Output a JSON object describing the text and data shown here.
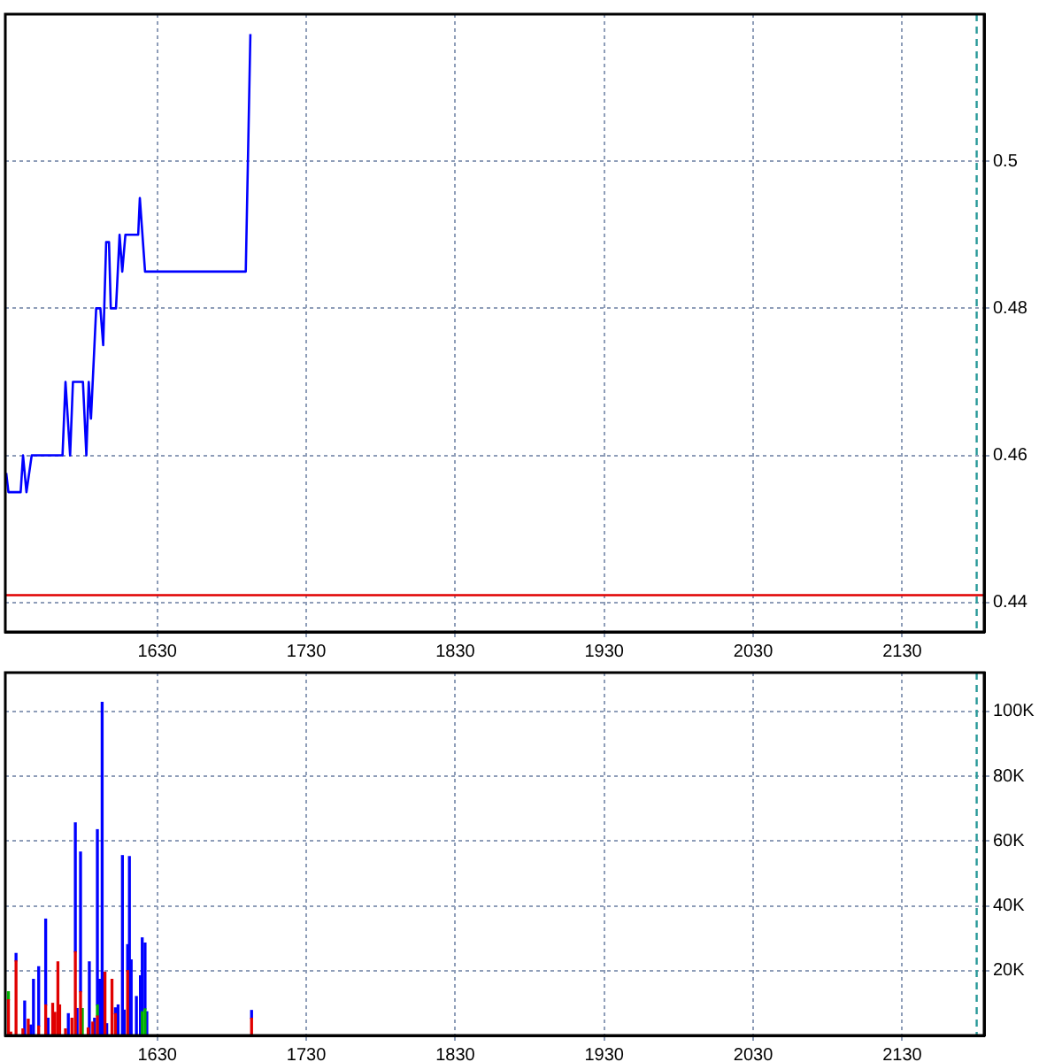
{
  "chart_data": [
    {
      "type": "line",
      "xlim": [
        1528,
        2185
      ],
      "xticks": [
        1630,
        1730,
        1830,
        1930,
        2030,
        2130
      ],
      "ylim": [
        0.436,
        0.52
      ],
      "yticks": [
        0.44,
        0.46,
        0.48,
        0.5
      ],
      "grid": true,
      "marker": "none",
      "line_style": "solid",
      "x": [
        1528.6,
        1530.1,
        1538.3,
        1539.9,
        1542.2,
        1545.7,
        1566.4,
        1568.4,
        1571.5,
        1573.4,
        1580.1,
        1582.4,
        1584,
        1585.5,
        1589,
        1591.8,
        1593.7,
        1595.7,
        1597.6,
        1598.8,
        1602.3,
        1604.7,
        1606.5,
        1608.6,
        1617.2,
        1618.3,
        1621.8,
        1689.4,
        1692.5
      ],
      "series": [
        {
          "color": "#0000ff",
          "values": [
            0.4576,
            0.455,
            0.455,
            0.46,
            0.455,
            0.46,
            0.46,
            0.47,
            0.46,
            0.47,
            0.47,
            0.46,
            0.47,
            0.465,
            0.48,
            0.48,
            0.475,
            0.489,
            0.489,
            0.48,
            0.48,
            0.49,
            0.485,
            0.49,
            0.49,
            0.495,
            0.485,
            0.485,
            0.5173
          ]
        }
      ],
      "ref_lines": [
        {
          "axis": "y",
          "value": 0.441,
          "color": "#e00000"
        },
        {
          "axis": "x",
          "value": 2180,
          "color": "#2a9a9a",
          "line_style": "dashed"
        }
      ]
    },
    {
      "type": "bar",
      "stacked": true,
      "xlim": [
        1528,
        2185
      ],
      "xticks": [
        1630,
        1730,
        1830,
        1930,
        2030,
        2130
      ],
      "ylim": [
        0,
        112000
      ],
      "yticks": [
        {
          "value": 20000,
          "label": "20K"
        },
        {
          "value": 40000,
          "label": "40K"
        },
        {
          "value": 60000,
          "label": "60K"
        },
        {
          "value": 80000,
          "label": "80K"
        },
        {
          "value": 100000,
          "label": "100K"
        }
      ],
      "grid": true,
      "x": [
        1530.1,
        1531.7,
        1535.2,
        1539.8,
        1541,
        1543.4,
        1545.1,
        1546.9,
        1550.4,
        1555.1,
        1556.7,
        1559.8,
        1561.3,
        1563.3,
        1564.5,
        1568.4,
        1570.3,
        1572.7,
        1575,
        1576.2,
        1578.5,
        1579.7,
        1583.6,
        1584.4,
        1586.7,
        1587.9,
        1589.8,
        1591.4,
        1593,
        1594.9,
        1596.1,
        1599.6,
        1601.9,
        1603.7,
        1606.6,
        1607.8,
        1610.1,
        1611.3,
        1612.5,
        1616,
        1618.7,
        1619.9,
        1621.8,
        1623,
        1693.3
      ],
      "series": [
        {
          "color": "#e00000",
          "values": [
            11000,
            1000,
            23000,
            2000,
            null,
            5000,
            null,
            null,
            2900,
            9400,
            null,
            9900,
            7100,
            22700,
            9400,
            2000,
            null,
            5300,
            25800,
            null,
            13500,
            null,
            2300,
            null,
            4100,
            null,
            6000,
            null,
            null,
            19500,
            null,
            17300,
            6700,
            null,
            null,
            null,
            20000,
            null,
            null,
            null,
            null,
            null,
            null,
            null,
            5300
          ]
        },
        {
          "color": "#00b000",
          "values": [
            2500,
            null,
            null,
            null,
            null,
            null,
            null,
            null,
            null,
            null,
            null,
            null,
            null,
            null,
            null,
            null,
            null,
            null,
            null,
            null,
            null,
            8300,
            null,
            null,
            null,
            null,
            3400,
            null,
            null,
            null,
            null,
            null,
            null,
            null,
            null,
            null,
            null,
            null,
            null,
            null,
            null,
            7300,
            8200,
            null,
            null
          ]
        },
        {
          "color": "#0000ff",
          "values": [
            null,
            null,
            2300,
            null,
            10600,
            null,
            3200,
            17300,
            18300,
            26500,
            5300,
            null,
            null,
            null,
            null,
            null,
            6700,
            null,
            39800,
            8300,
            43100,
            null,
            null,
            22700,
            null,
            5300,
            54100,
            17300,
            102800,
            null,
            3600,
            null,
            1800,
            9400,
            55500,
            7800,
            8000,
            55200,
            23300,
            12000,
            18400,
            22800,
            20300,
            7300,
            2400
          ]
        }
      ],
      "ref_lines": [
        {
          "axis": "x",
          "value": 2180,
          "color": "#2a9a9a",
          "line_style": "dashed"
        }
      ]
    }
  ]
}
